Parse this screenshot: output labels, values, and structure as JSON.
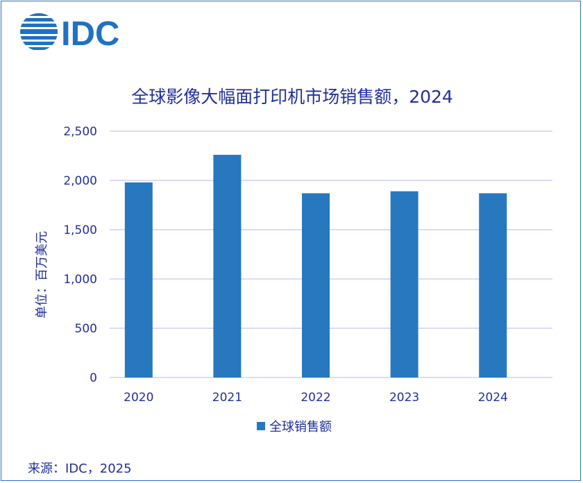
{
  "logo_text": "IDC",
  "source_text": "来源：IDC，2025",
  "chart_data": {
    "type": "bar",
    "title": "全球影像大幅面打印机市场销售额，2024",
    "ylabel": "单位：百万美元",
    "xlabel": "",
    "categories": [
      "2020",
      "2021",
      "2022",
      "2023",
      "2024"
    ],
    "series": [
      {
        "name": "全球销售额",
        "values": [
          1980,
          2260,
          1870,
          1890,
          1870
        ]
      }
    ],
    "yticks": [
      "0",
      "500",
      "1,000",
      "1,500",
      "2,000",
      "2,500"
    ],
    "ytick_values": [
      0,
      500,
      1000,
      1500,
      2000,
      2500
    ],
    "ylim": [
      0,
      2500
    ],
    "grid": true,
    "legend_position": "bottom",
    "colors": {
      "bar": "#2778bf",
      "grid": "#b5b8ef",
      "text": "#1f2f9b",
      "border": "#2f6db4",
      "logo": "#1f72c2"
    }
  }
}
